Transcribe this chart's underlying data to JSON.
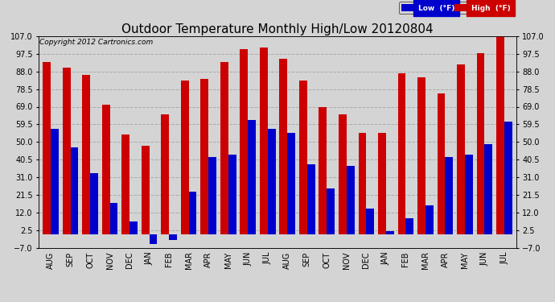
{
  "title": "Outdoor Temperature Monthly High/Low 20120804",
  "copyright": "Copyright 2012 Cartronics.com",
  "legend_low": "Low  (°F)",
  "legend_high": "High  (°F)",
  "months": [
    "AUG",
    "SEP",
    "OCT",
    "NOV",
    "DEC",
    "JAN",
    "FEB",
    "MAR",
    "APR",
    "MAY",
    "JUN",
    "JUL",
    "AUG",
    "SEP",
    "OCT",
    "NOV",
    "DEC",
    "JAN",
    "FEB",
    "MAR",
    "APR",
    "MAY",
    "JUN",
    "JUL"
  ],
  "high_vals": [
    93,
    90,
    86,
    70,
    54,
    48,
    65,
    83,
    84,
    93,
    100,
    101,
    95,
    83,
    69,
    65,
    55,
    55,
    87,
    85,
    76,
    92,
    98,
    107
  ],
  "low_vals": [
    57,
    47,
    33,
    17,
    7,
    -5,
    -3,
    23,
    42,
    43,
    62,
    57,
    55,
    38,
    25,
    37,
    14,
    2,
    9,
    16,
    42,
    43,
    49,
    61
  ],
  "ymin": -7,
  "ymax": 107,
  "yticks": [
    -7.0,
    2.5,
    12.0,
    21.5,
    31.0,
    40.5,
    50.0,
    59.5,
    69.0,
    78.5,
    88.0,
    97.5,
    107.0
  ],
  "bg_color": "#d4d4d4",
  "bar_width": 0.4,
  "low_color": "#0000cc",
  "high_color": "#cc0000",
  "grid_color": "#aaaaaa",
  "title_fontsize": 11,
  "tick_fontsize": 7,
  "copyright_fontsize": 6.5
}
